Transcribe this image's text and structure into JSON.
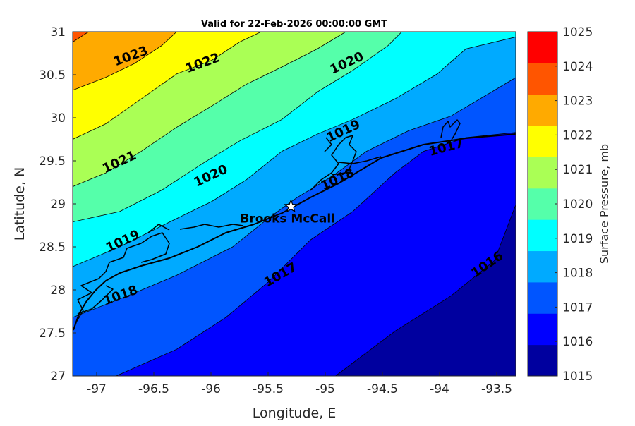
{
  "chart_data": {
    "type": "contour",
    "title": "Valid for 22-Feb-2026 00:00:00 GMT",
    "xlabel": "Longitude, E",
    "ylabel": "Latitude, N",
    "colorbar_label": "Surface Pressure, mb",
    "xlim": [
      -97.21,
      -93.33
    ],
    "ylim": [
      27,
      31
    ],
    "xticks": [
      -97,
      -96.5,
      -96,
      -95.5,
      -95,
      -94.5,
      -94,
      -93.5
    ],
    "xtick_labels": [
      "-97",
      "-96.5",
      "-96",
      "-95.5",
      "-95",
      "-94.5",
      "-94",
      "-93.5"
    ],
    "yticks": [
      27,
      27.5,
      28,
      28.5,
      29,
      29.5,
      30,
      30.5,
      31
    ],
    "ytick_labels": [
      "27",
      "27.5",
      "28",
      "28.5",
      "29",
      "29.5",
      "30",
      "30.5",
      "31"
    ],
    "colorbar_ticks": [
      "1015",
      "1016",
      "1017",
      "1018",
      "1019",
      "1020",
      "1021",
      "1022",
      "1023",
      "1024",
      "1025"
    ],
    "band_colors": [
      "#00009f",
      "#0000ff",
      "#0055ff",
      "#00aaff",
      "#00ffff",
      "#55ffaa",
      "#aaff55",
      "#ffff00",
      "#ffaa00",
      "#ff5500",
      "#ff0000"
    ],
    "base_color": "#00009f",
    "contours": [
      {
        "level": 1016,
        "fill": "#0000ff",
        "close": "right",
        "path": [
          [
            -94.91,
            27
          ],
          [
            -94.39,
            27.52
          ],
          [
            -93.9,
            27.93
          ],
          [
            -93.52,
            28.34
          ],
          [
            -93.33,
            29.0
          ]
        ]
      },
      {
        "level": 1017,
        "fill": "#0055ff",
        "close": "right",
        "path": [
          [
            -96.83,
            27
          ],
          [
            -96.3,
            27.31
          ],
          [
            -95.87,
            27.68
          ],
          [
            -95.5,
            28.09
          ],
          [
            -95.13,
            28.58
          ],
          [
            -94.76,
            28.91
          ],
          [
            -94.39,
            29.36
          ],
          [
            -94.14,
            29.61
          ],
          [
            -93.77,
            29.77
          ],
          [
            -93.33,
            29.83
          ]
        ]
      },
      {
        "level": 1018,
        "fill": "#00aaff",
        "close": "right",
        "path": [
          [
            -97.21,
            27.68
          ],
          [
            -96.73,
            27.93
          ],
          [
            -96.3,
            28.17
          ],
          [
            -95.81,
            28.5
          ],
          [
            -95.5,
            28.83
          ],
          [
            -95.25,
            29.07
          ],
          [
            -94.94,
            29.32
          ],
          [
            -94.64,
            29.61
          ],
          [
            -94.27,
            29.85
          ],
          [
            -93.9,
            30.02
          ],
          [
            -93.33,
            30.47
          ]
        ]
      },
      {
        "level": 1019,
        "fill": "#00ffff",
        "close": "right",
        "path": [
          [
            -97.21,
            28.27
          ],
          [
            -96.8,
            28.5
          ],
          [
            -96.36,
            28.79
          ],
          [
            -95.99,
            29.03
          ],
          [
            -95.69,
            29.28
          ],
          [
            -95.38,
            29.61
          ],
          [
            -95.07,
            29.81
          ],
          [
            -94.76,
            29.98
          ],
          [
            -94.39,
            30.22
          ],
          [
            -94.02,
            30.51
          ],
          [
            -93.77,
            30.8
          ],
          [
            -93.33,
            30.94
          ]
        ]
      },
      {
        "level": 1020,
        "fill": "#55ffaa",
        "close": "top",
        "path": [
          [
            -97.21,
            28.79
          ],
          [
            -96.8,
            28.91
          ],
          [
            -96.43,
            29.16
          ],
          [
            -96.06,
            29.48
          ],
          [
            -95.75,
            29.73
          ],
          [
            -95.38,
            29.98
          ],
          [
            -95.07,
            30.3
          ],
          [
            -94.76,
            30.55
          ],
          [
            -94.45,
            30.84
          ],
          [
            -94.33,
            31
          ]
        ]
      },
      {
        "level": 1021,
        "fill": "#aaff55",
        "close": "top",
        "path": [
          [
            -97.21,
            29.2
          ],
          [
            -96.92,
            29.36
          ],
          [
            -96.61,
            29.61
          ],
          [
            -96.3,
            29.89
          ],
          [
            -95.99,
            30.14
          ],
          [
            -95.69,
            30.39
          ],
          [
            -95.38,
            30.59
          ],
          [
            -95.07,
            30.8
          ],
          [
            -94.82,
            31
          ]
        ]
      },
      {
        "level": 1022,
        "fill": "#ffff00",
        "close": "top",
        "path": [
          [
            -97.21,
            29.75
          ],
          [
            -96.92,
            29.93
          ],
          [
            -96.61,
            30.22
          ],
          [
            -96.3,
            30.51
          ],
          [
            -95.99,
            30.67
          ],
          [
            -95.75,
            30.88
          ],
          [
            -95.56,
            31
          ]
        ]
      },
      {
        "level": 1023,
        "fill": "#ffaa00",
        "close": "top",
        "path": [
          [
            -97.21,
            30.32
          ],
          [
            -96.92,
            30.47
          ],
          [
            -96.67,
            30.63
          ],
          [
            -96.43,
            30.84
          ],
          [
            -96.3,
            31
          ]
        ]
      },
      {
        "level": 1024,
        "fill": "#ff5500",
        "close": "top",
        "path": [
          [
            -97.21,
            30.88
          ],
          [
            -97.07,
            31
          ]
        ]
      }
    ],
    "contour_labels": [
      {
        "text": "1023",
        "lon": -96.7,
        "lat": 30.71,
        "angle": -20
      },
      {
        "text": "1022",
        "lon": -96.07,
        "lat": 30.63,
        "angle": -20
      },
      {
        "text": "1020",
        "lon": -94.81,
        "lat": 30.63,
        "angle": -25
      },
      {
        "text": "1021",
        "lon": -96.8,
        "lat": 29.48,
        "angle": -25
      },
      {
        "text": "1020",
        "lon": -96.0,
        "lat": 29.32,
        "angle": -25
      },
      {
        "text": "1019",
        "lon": -94.84,
        "lat": 29.84,
        "angle": -25
      },
      {
        "text": "1018",
        "lon": -94.89,
        "lat": 29.28,
        "angle": -25
      },
      {
        "text": "1017",
        "lon": -93.94,
        "lat": 29.65,
        "angle": -15
      },
      {
        "text": "1019",
        "lon": -96.77,
        "lat": 28.56,
        "angle": -25
      },
      {
        "text": "1018",
        "lon": -96.79,
        "lat": 27.93,
        "angle": -20
      },
      {
        "text": "1017",
        "lon": -95.39,
        "lat": 28.17,
        "angle": -30
      },
      {
        "text": "1016",
        "lon": -93.58,
        "lat": 28.29,
        "angle": -35
      }
    ],
    "marker": {
      "label": "Brooks McCall",
      "lon": -95.3,
      "lat": 28.97,
      "symbol": "star"
    }
  }
}
